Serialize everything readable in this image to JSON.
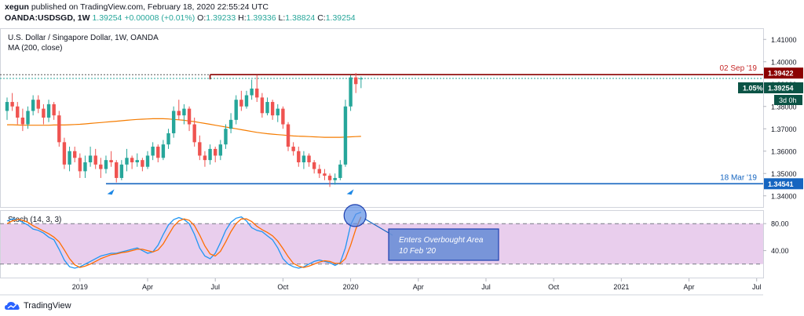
{
  "header": {
    "user": "xegun",
    "published": "published on TradingView.com, February 18, 2020 22:55:24 UTC",
    "symbol": "OANDA:USDSGD, 1W",
    "last": "1.39254",
    "change": "+0.00008 (+0.01%)",
    "o_label": "O:",
    "o_value": "1.39233",
    "h_label": "H:",
    "h_value": "1.39336",
    "l_label": "L:",
    "l_value": "1.38824",
    "c_label": "C:",
    "c_value": "1.39254"
  },
  "footer": {
    "brand": "TradingView"
  },
  "colors": {
    "up": "#26a69a",
    "down": "#ef5350",
    "ma": "#f57c00",
    "res_line": "#8b0000",
    "sup_line": "#1565c0",
    "stoch_k": "#2196f3",
    "stoch_d": "#ff6d00",
    "stoch_band": "#e1bee7"
  },
  "chart_data": [
    {
      "type": "candlestick",
      "title": "U.S. Dollar / Singapore Dollar, 1W, OANDA",
      "indicator_label": "MA (200, close)",
      "ylim": [
        1.335,
        1.415
      ],
      "y_ticks": [
        "1.41000",
        "1.40000",
        "1.39000",
        "1.38000",
        "1.37000",
        "1.36000",
        "1.35000",
        "1.34000"
      ],
      "x_ticks": [
        "2019",
        "Apr",
        "Jul",
        "Oct",
        "2020",
        "Apr",
        "Jul",
        "Oct",
        "2021",
        "Apr",
        "Jul"
      ],
      "x_tick_positions_week": [
        14,
        27,
        40,
        53,
        66,
        79,
        92,
        105,
        118,
        131,
        144
      ],
      "ohlc": [
        [
          1.378,
          1.384,
          1.374,
          1.382
        ],
        [
          1.382,
          1.386,
          1.378,
          1.38
        ],
        [
          1.38,
          1.382,
          1.372,
          1.375
        ],
        [
          1.375,
          1.379,
          1.369,
          1.372
        ],
        [
          1.372,
          1.38,
          1.37,
          1.378
        ],
        [
          1.378,
          1.385,
          1.376,
          1.383
        ],
        [
          1.383,
          1.385,
          1.377,
          1.379
        ],
        [
          1.379,
          1.381,
          1.372,
          1.375
        ],
        [
          1.375,
          1.383,
          1.373,
          1.381
        ],
        [
          1.381,
          1.382,
          1.374,
          1.376
        ],
        [
          1.376,
          1.378,
          1.362,
          1.364
        ],
        [
          1.364,
          1.366,
          1.352,
          1.354
        ],
        [
          1.354,
          1.362,
          1.351,
          1.36
        ],
        [
          1.36,
          1.362,
          1.355,
          1.357
        ],
        [
          1.357,
          1.359,
          1.348,
          1.351
        ],
        [
          1.351,
          1.358,
          1.348,
          1.355
        ],
        [
          1.355,
          1.362,
          1.353,
          1.358
        ],
        [
          1.358,
          1.361,
          1.352,
          1.354
        ],
        [
          1.354,
          1.357,
          1.348,
          1.352
        ],
        [
          1.352,
          1.358,
          1.35,
          1.356
        ],
        [
          1.356,
          1.36,
          1.353,
          1.355
        ],
        [
          1.355,
          1.356,
          1.346,
          1.348
        ],
        [
          1.348,
          1.356,
          1.347,
          1.354
        ],
        [
          1.354,
          1.361,
          1.351,
          1.357
        ],
        [
          1.357,
          1.358,
          1.352,
          1.355
        ],
        [
          1.355,
          1.359,
          1.353,
          1.356
        ],
        [
          1.356,
          1.357,
          1.351,
          1.353
        ],
        [
          1.353,
          1.36,
          1.352,
          1.358
        ],
        [
          1.358,
          1.364,
          1.356,
          1.362
        ],
        [
          1.362,
          1.363,
          1.355,
          1.357
        ],
        [
          1.357,
          1.365,
          1.356,
          1.363
        ],
        [
          1.363,
          1.37,
          1.361,
          1.368
        ],
        [
          1.368,
          1.38,
          1.366,
          1.378
        ],
        [
          1.378,
          1.383,
          1.374,
          1.376
        ],
        [
          1.376,
          1.381,
          1.372,
          1.379
        ],
        [
          1.379,
          1.38,
          1.369,
          1.372
        ],
        [
          1.372,
          1.375,
          1.362,
          1.364
        ],
        [
          1.364,
          1.367,
          1.356,
          1.358
        ],
        [
          1.358,
          1.36,
          1.353,
          1.356
        ],
        [
          1.356,
          1.363,
          1.354,
          1.361
        ],
        [
          1.361,
          1.362,
          1.355,
          1.358
        ],
        [
          1.358,
          1.365,
          1.356,
          1.363
        ],
        [
          1.363,
          1.372,
          1.361,
          1.37
        ],
        [
          1.37,
          1.377,
          1.368,
          1.374
        ],
        [
          1.374,
          1.385,
          1.372,
          1.383
        ],
        [
          1.383,
          1.387,
          1.378,
          1.38
        ],
        [
          1.38,
          1.387,
          1.379,
          1.385
        ],
        [
          1.385,
          1.392,
          1.383,
          1.388
        ],
        [
          1.388,
          1.394,
          1.382,
          1.384
        ],
        [
          1.384,
          1.386,
          1.375,
          1.377
        ],
        [
          1.377,
          1.384,
          1.376,
          1.382
        ],
        [
          1.382,
          1.383,
          1.374,
          1.376
        ],
        [
          1.376,
          1.381,
          1.373,
          1.379
        ],
        [
          1.379,
          1.38,
          1.37,
          1.372
        ],
        [
          1.372,
          1.373,
          1.36,
          1.362
        ],
        [
          1.362,
          1.364,
          1.358,
          1.36
        ],
        [
          1.36,
          1.362,
          1.353,
          1.355
        ],
        [
          1.355,
          1.36,
          1.352,
          1.358
        ],
        [
          1.358,
          1.359,
          1.353,
          1.355
        ],
        [
          1.355,
          1.356,
          1.35,
          1.352
        ],
        [
          1.352,
          1.354,
          1.348,
          1.35
        ],
        [
          1.35,
          1.352,
          1.347,
          1.349
        ],
        [
          1.349,
          1.35,
          1.344,
          1.347
        ],
        [
          1.347,
          1.35,
          1.345,
          1.348
        ],
        [
          1.348,
          1.356,
          1.347,
          1.354
        ],
        [
          1.354,
          1.383,
          1.353,
          1.38
        ],
        [
          1.38,
          1.394,
          1.378,
          1.393
        ],
        [
          1.393,
          1.395,
          1.386,
          1.39
        ],
        [
          1.3923,
          1.3934,
          1.3882,
          1.3925
        ]
      ],
      "ma200": [
        1.3718,
        1.3718,
        1.3717,
        1.3716,
        1.3716,
        1.3716,
        1.3716,
        1.3716,
        1.3716,
        1.3717,
        1.3717,
        1.3717,
        1.3718,
        1.3719,
        1.372,
        1.3722,
        1.3724,
        1.3726,
        1.3728,
        1.373,
        1.3732,
        1.3734,
        1.3736,
        1.3738,
        1.374,
        1.3742,
        1.3743,
        1.3744,
        1.3745,
        1.3745,
        1.3745,
        1.3744,
        1.3742,
        1.374,
        1.3738,
        1.3735,
        1.3732,
        1.3728,
        1.3724,
        1.372,
        1.3716,
        1.3712,
        1.3708,
        1.3704,
        1.37,
        1.3696,
        1.3692,
        1.3688,
        1.3684,
        1.3681,
        1.3678,
        1.3676,
        1.3674,
        1.3672,
        1.367,
        1.3668,
        1.3667,
        1.3666,
        1.3665,
        1.3664,
        1.3663,
        1.3662,
        1.3662,
        1.3662,
        1.3662,
        1.3663,
        1.3664,
        1.3665,
        1.3666
      ],
      "current_price": 1.39254,
      "price_badge": "1.39254",
      "price_change_badge": "1.05%",
      "countdown_badge": "3d 0h",
      "resistance": {
        "price": 1.39422,
        "label": "1.39422",
        "date_label": "02 Sep '19",
        "start_week": 39
      },
      "support": {
        "price": 1.34541,
        "label": "1.34541",
        "date_label": "18 Mar '19",
        "start_week": 19
      },
      "markers_week": [
        20,
        66
      ]
    },
    {
      "type": "line",
      "title": "Stoch (14, 3, 3)",
      "ylim": [
        0,
        100
      ],
      "y_ticks": [
        "80.00",
        "40.00"
      ],
      "bands": [
        20,
        80
      ],
      "series": [
        {
          "name": "%K",
          "values": [
            84,
            87,
            86,
            82,
            78,
            72,
            70,
            66,
            60,
            56,
            42,
            26,
            16,
            14,
            16,
            20,
            24,
            28,
            32,
            34,
            36,
            36,
            38,
            40,
            42,
            44,
            40,
            36,
            38,
            48,
            64,
            78,
            86,
            89,
            86,
            80,
            64,
            44,
            32,
            28,
            36,
            52,
            70,
            82,
            88,
            90,
            84,
            74,
            70,
            68,
            62,
            56,
            44,
            28,
            20,
            16,
            14,
            16,
            20,
            24,
            26,
            24,
            22,
            18,
            22,
            44,
            78,
            94,
            97
          ]
        },
        {
          "name": "%D",
          "values": [
            80,
            84,
            86,
            85,
            82,
            77,
            73,
            69,
            65,
            60,
            53,
            41,
            28,
            19,
            15,
            17,
            20,
            24,
            28,
            31,
            34,
            35,
            37,
            38,
            40,
            42,
            42,
            40,
            38,
            41,
            50,
            63,
            76,
            84,
            87,
            85,
            77,
            63,
            47,
            35,
            32,
            39,
            53,
            68,
            80,
            87,
            87,
            83,
            76,
            71,
            67,
            62,
            54,
            43,
            31,
            21,
            17,
            15,
            17,
            20,
            23,
            25,
            24,
            21,
            21,
            28,
            48,
            72,
            90
          ]
        }
      ],
      "annotation": {
        "line1": "Enters Overbought Area",
        "line2": "10 Feb '20",
        "week": 67
      }
    }
  ]
}
